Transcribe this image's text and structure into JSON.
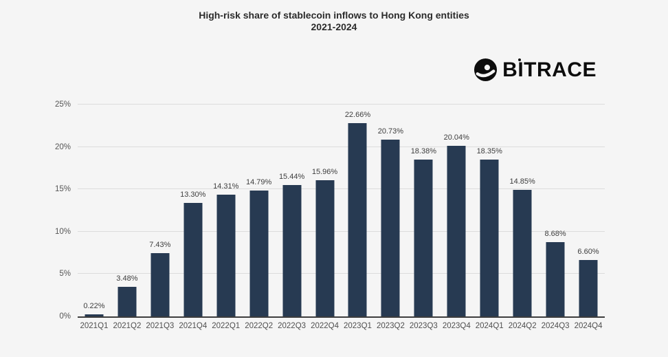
{
  "logo": {
    "text": "BITRACE"
  },
  "chart_data": {
    "type": "bar",
    "title": "High-risk share of stablecoin inflows to Hong Kong entities",
    "subtitle": "2021-2024",
    "categories": [
      "2021Q1",
      "2021Q2",
      "2021Q3",
      "2021Q4",
      "2022Q1",
      "2022Q2",
      "2022Q3",
      "2022Q4",
      "2023Q1",
      "2023Q2",
      "2023Q3",
      "2023Q4",
      "2024Q1",
      "2024Q2",
      "2024Q3",
      "2024Q4"
    ],
    "values": [
      0.22,
      3.48,
      7.43,
      13.3,
      14.31,
      14.79,
      15.44,
      15.96,
      22.66,
      20.73,
      18.38,
      20.04,
      18.35,
      14.85,
      8.68,
      6.6
    ],
    "value_labels": [
      "0.22%",
      "3.48%",
      "7.43%",
      "13.30%",
      "14.31%",
      "14.79%",
      "15.44%",
      "15.96%",
      "22.66%",
      "20.73%",
      "18.38%",
      "20.04%",
      "18.35%",
      "14.85%",
      "8.68%",
      "6.60%"
    ],
    "yticks": [
      "0%",
      "5%",
      "10%",
      "15%",
      "20%",
      "25%"
    ],
    "ylim": [
      0,
      25
    ],
    "xlabel": "",
    "ylabel": "",
    "grid": true,
    "legend": "none",
    "bar_color": "#273a52",
    "background": "#f5f5f5",
    "gridline_color": "#dcdcdc",
    "axis_line_color": "#3d3d3d"
  }
}
